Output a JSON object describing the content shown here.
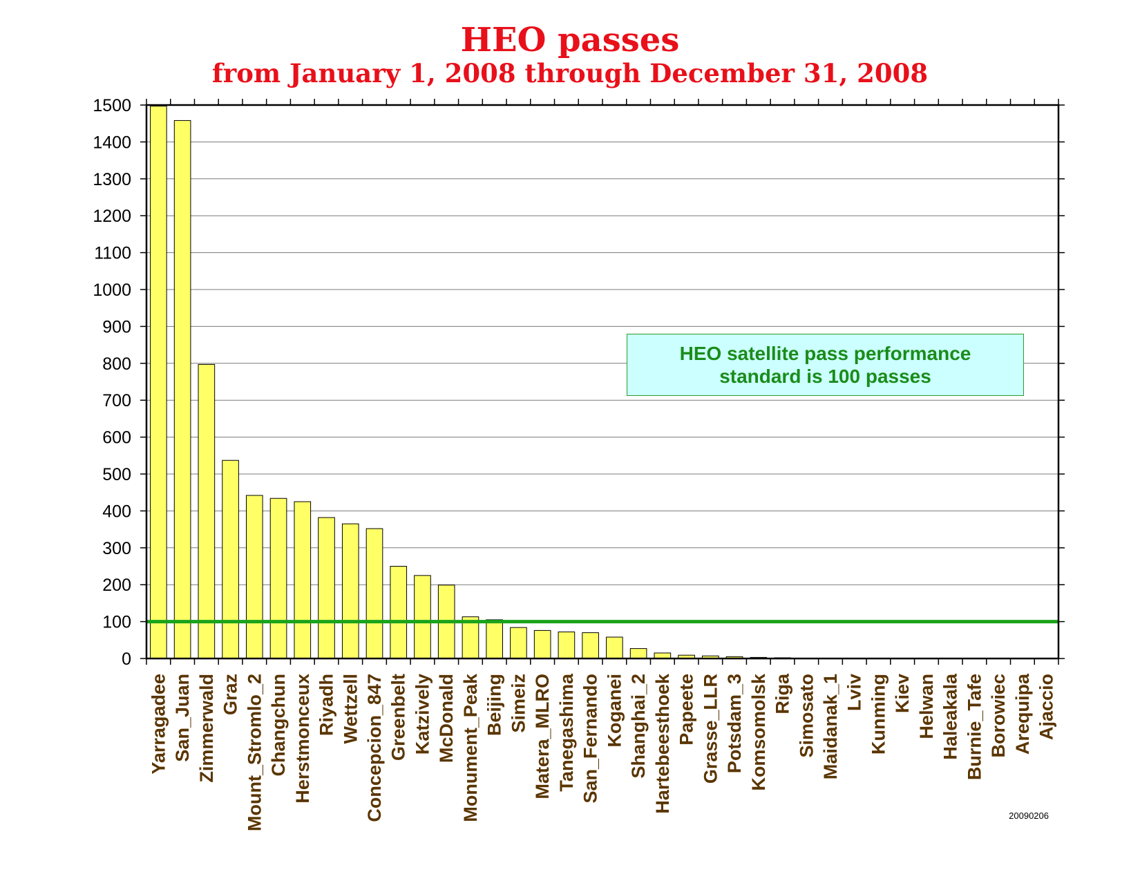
{
  "chart_data": {
    "type": "bar",
    "title": "HEO passes",
    "subtitle": "from January 1, 2008 through December 31, 2008",
    "xlabel": "",
    "ylabel": "",
    "ylim": [
      0,
      1500
    ],
    "yticks": [
      0,
      100,
      200,
      300,
      400,
      500,
      600,
      700,
      800,
      900,
      1000,
      1100,
      1200,
      1300,
      1400,
      1500
    ],
    "grid": true,
    "categories": [
      "Yarragadee",
      "San_Juan",
      "Zimmerwald",
      "Graz",
      "Mount_Stromlo_2",
      "Changchun",
      "Herstmonceux",
      "Riyadh",
      "Wettzell",
      "Concepcion_847",
      "Greenbelt",
      "Katzively",
      "McDonald",
      "Monument_Peak",
      "Beijing",
      "Simeiz",
      "Matera_MLRO",
      "Tanegashima",
      "San_Fernando",
      "Koganei",
      "Shanghai_2",
      "Hartebeesthoek",
      "Papeete",
      "Grasse_LLR",
      "Potsdam_3",
      "Komsomolsk",
      "Riga",
      "Simosato",
      "Maidanak_1",
      "Lviv",
      "Kunming",
      "Kiev",
      "Helwan",
      "Haleakala",
      "Burnie_Tafe",
      "Borowiec",
      "Arequipa",
      "Ajaccio"
    ],
    "values": [
      1497,
      1458,
      797,
      537,
      442,
      434,
      425,
      382,
      365,
      352,
      250,
      225,
      199,
      113,
      105,
      84,
      76,
      72,
      70,
      58,
      27,
      15,
      9,
      7,
      5,
      3,
      2,
      0,
      0,
      0,
      0,
      0,
      0,
      0,
      0,
      0,
      0,
      0
    ],
    "reference_line": {
      "value": 100,
      "color": "#1aa31a"
    },
    "annotation": {
      "line1": "HEO satellite pass performance",
      "line2": "standard is 100 passes"
    },
    "colors": {
      "bar": "#ffff66",
      "bar_edge": "#000000",
      "label": "#5a3500",
      "title": "#e8101a"
    }
  },
  "footer_code": "20090206"
}
